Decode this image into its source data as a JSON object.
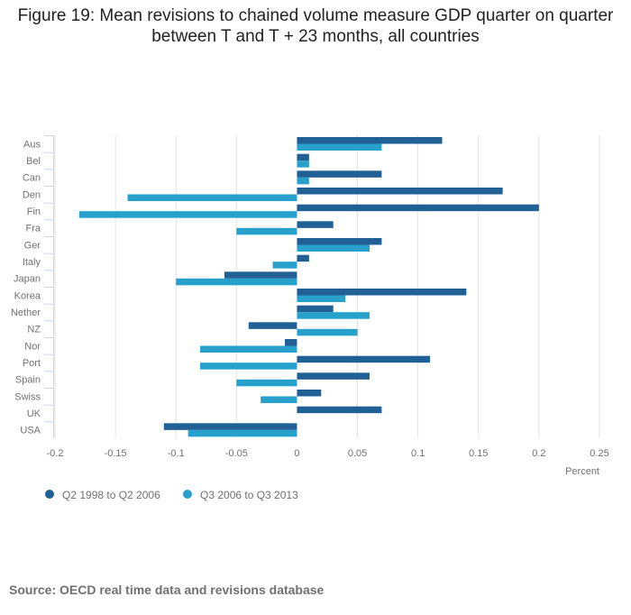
{
  "chart_data": {
    "type": "bar",
    "orientation": "horizontal",
    "title": "Figure 19: Mean revisions to chained volume measure GDP quarter on quarter between T and T + 23 months, all countries",
    "categories": [
      "Aus",
      "Bel",
      "Can",
      "Den",
      "Fin",
      "Fra",
      "Ger",
      "Italy",
      "Japan",
      "Korea",
      "Nether",
      "NZ",
      "Nor",
      "Port",
      "Spain",
      "Swiss",
      "UK",
      "USA"
    ],
    "series": [
      {
        "name": "Q2 1998 to Q2 2006",
        "color": "#206095",
        "values": [
          0.12,
          0.01,
          0.07,
          0.17,
          0.2,
          0.03,
          0.07,
          0.01,
          -0.06,
          0.14,
          0.03,
          -0.04,
          -0.01,
          0.11,
          0.06,
          0.02,
          0.07,
          -0.11
        ]
      },
      {
        "name": "Q3 2006 to Q3 2013",
        "color": "#27a0cc",
        "values": [
          0.07,
          0.01,
          0.01,
          -0.14,
          -0.18,
          -0.05,
          0.06,
          -0.02,
          -0.1,
          0.04,
          0.06,
          0.05,
          -0.08,
          -0.08,
          -0.05,
          -0.03,
          0,
          -0.09
        ]
      }
    ],
    "xlabel": "Percent",
    "xlim": [
      -0.2,
      0.25
    ],
    "xticks": [
      "-0.2",
      "-0.15",
      "-0.1",
      "-0.05",
      "0",
      "0.05",
      "0.1",
      "0.15",
      "0.2",
      "0.25"
    ],
    "grid": true,
    "legend": "bottom-left"
  },
  "source": "Source: OECD real time data and revisions database"
}
